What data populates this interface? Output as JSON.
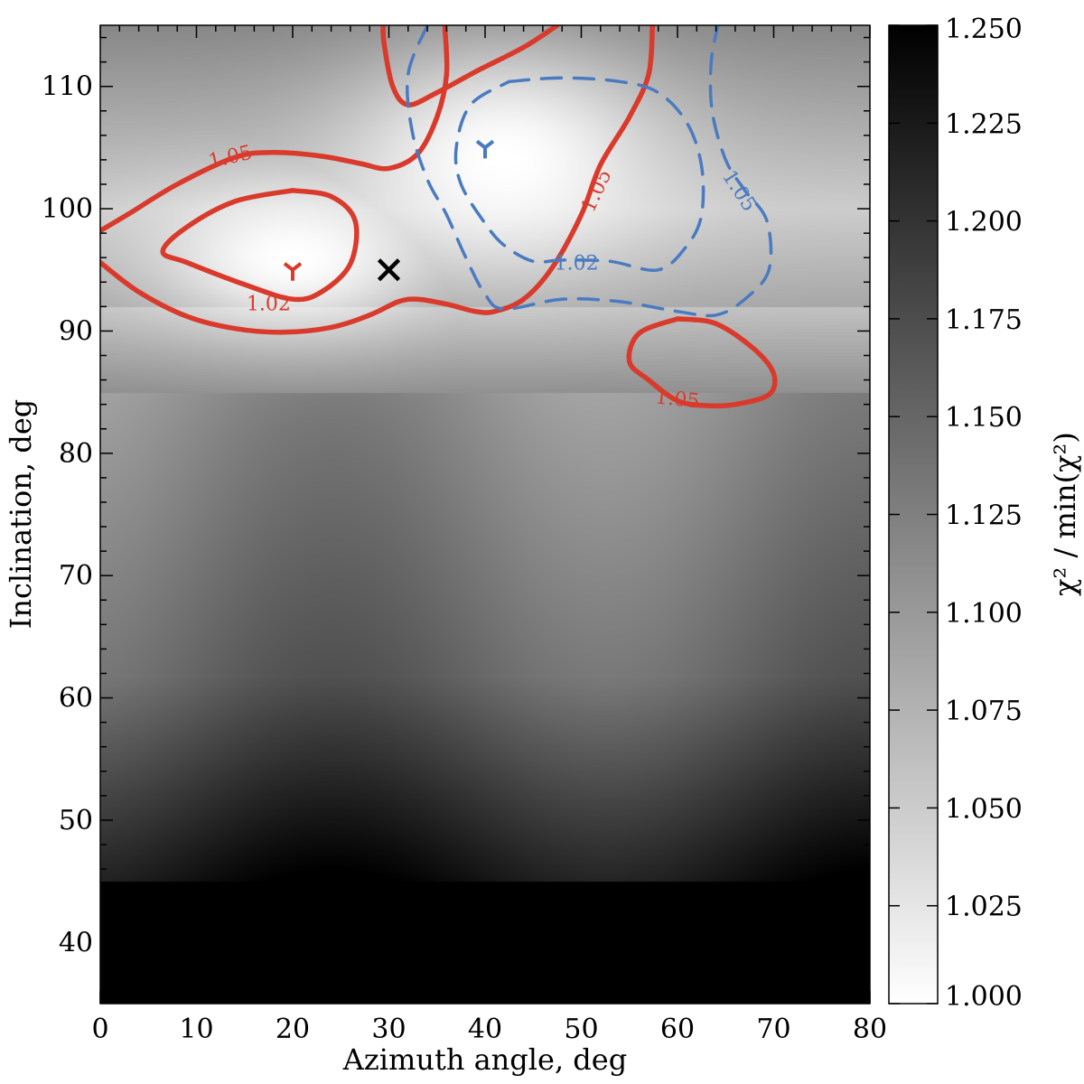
{
  "chart_data": {
    "type": "heatmap",
    "xlabel": "Azimuth angle, deg",
    "ylabel": "Inclination, deg",
    "xlim": [
      0,
      80
    ],
    "ylim": [
      35,
      115
    ],
    "x_ticks": [
      0,
      10,
      20,
      30,
      40,
      50,
      60,
      70,
      80
    ],
    "y_ticks": [
      40,
      50,
      60,
      70,
      80,
      90,
      100,
      110
    ],
    "x_tick_labels": [
      "0",
      "10",
      "20",
      "30",
      "40",
      "50",
      "60",
      "70",
      "80"
    ],
    "y_tick_labels": [
      "40",
      "50",
      "60",
      "70",
      "80",
      "90",
      "100",
      "110"
    ],
    "colorbar": {
      "label": "χ² / min(χ²)",
      "range": [
        1.0,
        1.25
      ],
      "colormap": "white-to-black",
      "ticks": [
        1.0,
        1.025,
        1.05,
        1.075,
        1.1,
        1.125,
        1.15,
        1.175,
        1.2,
        1.225,
        1.25
      ],
      "tick_labels": [
        "1.000",
        "1.025",
        "1.050",
        "1.075",
        "1.100",
        "1.125",
        "1.150",
        "1.175",
        "1.200",
        "1.225",
        "1.250"
      ]
    },
    "heatmap_minima": [
      {
        "x": 20,
        "y": 96,
        "value": 1.0,
        "sx": 14,
        "sy": 6
      },
      {
        "x": 42,
        "y": 104,
        "value": 1.0,
        "sx": 16,
        "sy": 9
      }
    ],
    "contours": [
      {
        "color": "#d93a2b",
        "style": "solid",
        "levels": [
          "1.02",
          "1.05"
        ],
        "label_positions": [
          {
            "text": "1.05",
            "x": 13.5,
            "y": 104.3,
            "angle": -13
          },
          {
            "text": "1.02",
            "x": 17.5,
            "y": 92.3,
            "angle": 0
          },
          {
            "text": "1.05",
            "x": 51.5,
            "y": 101.5,
            "angle": -65
          },
          {
            "text": "1.05",
            "x": 60,
            "y": 84.5,
            "angle": 6
          }
        ],
        "paths": [
          [
            [
              0,
              98.2
            ],
            [
              3,
              99.6
            ],
            [
              8,
              102
            ],
            [
              14,
              104.2
            ],
            [
              18,
              104.6
            ],
            [
              23,
              104.3
            ],
            [
              27,
              103.7
            ],
            [
              30,
              103.3
            ],
            [
              33,
              104.5
            ],
            [
              35,
              107.5
            ],
            [
              36,
              111
            ],
            [
              35.8,
              115
            ]
          ],
          [
            [
              0,
              95.6
            ],
            [
              4,
              93.2
            ],
            [
              9,
              91.2
            ],
            [
              14,
              90.2
            ],
            [
              19,
              89.9
            ],
            [
              24,
              90.3
            ],
            [
              28,
              91.3
            ],
            [
              31,
              92.4
            ],
            [
              33,
              92.6
            ],
            [
              36,
              92.2
            ],
            [
              39,
              91.6
            ],
            [
              41,
              91.6
            ],
            [
              44,
              92.6
            ],
            [
              47,
              95.2
            ],
            [
              50,
              99.5
            ],
            [
              52,
              103.6
            ],
            [
              55,
              107.5
            ],
            [
              57,
              111
            ],
            [
              57.4,
              115
            ]
          ],
          [
            [
              20,
              101.5
            ],
            [
              24,
              101
            ],
            [
              26.5,
              99
            ],
            [
              26,
              95.5
            ],
            [
              23,
              93.2
            ],
            [
              20,
              92.6
            ],
            [
              15,
              93.8
            ],
            [
              9,
              95.6
            ],
            [
              6.5,
              96.5
            ],
            [
              9,
              98.5
            ],
            [
              14,
              100.6
            ],
            [
              20,
              101.5
            ]
          ],
          [
            [
              60,
              91
            ],
            [
              64,
              90.6
            ],
            [
              68,
              88.5
            ],
            [
              70,
              86.5
            ],
            [
              69.5,
              84.8
            ],
            [
              66,
              84
            ],
            [
              63,
              83.9
            ],
            [
              60,
              84.3
            ],
            [
              57,
              86
            ],
            [
              55,
              87.5
            ],
            [
              56,
              89.8
            ],
            [
              60,
              91
            ]
          ],
          [
            [
              47.5,
              115
            ],
            [
              44,
              113.2
            ],
            [
              39,
              111.2
            ],
            [
              35,
              109.5
            ],
            [
              32,
              108.5
            ],
            [
              30.4,
              110
            ],
            [
              29.5,
              113.5
            ],
            [
              29.4,
              115
            ]
          ]
        ]
      },
      {
        "color": "#4a7bc0",
        "style": "dashed",
        "levels": [
          "1.02",
          "1.05"
        ],
        "label_positions": [
          {
            "text": "1.02",
            "x": 49.5,
            "y": 95.6,
            "angle": 0
          },
          {
            "text": "1.05",
            "x": 66.5,
            "y": 101.5,
            "angle": 57
          }
        ],
        "paths": [
          [
            [
              34,
              115
            ],
            [
              32,
              111
            ],
            [
              32.4,
              106.4
            ],
            [
              34,
              102.4
            ],
            [
              36,
              99.5
            ],
            [
              38,
              96
            ],
            [
              40,
              93
            ],
            [
              42,
              91.8
            ],
            [
              48,
              92.6
            ],
            [
              54,
              92.4
            ],
            [
              60,
              91.6
            ],
            [
              64,
              91.3
            ],
            [
              67,
              92.6
            ],
            [
              69.5,
              95
            ],
            [
              69.3,
              99
            ],
            [
              67,
              101.5
            ],
            [
              65,
              104
            ],
            [
              63.6,
              108
            ],
            [
              63.5,
              112
            ],
            [
              64.2,
              115
            ]
          ],
          [
            [
              42.5,
              110.4
            ],
            [
              48,
              110.7
            ],
            [
              54,
              110.4
            ],
            [
              58,
              109.5
            ],
            [
              61,
              107
            ],
            [
              62.5,
              103.5
            ],
            [
              62.5,
              99.5
            ],
            [
              61,
              97
            ],
            [
              58,
              95
            ],
            [
              53,
              95.7
            ],
            [
              48,
              95.8
            ],
            [
              45,
              95.7
            ],
            [
              42,
              97
            ],
            [
              40,
              98.8
            ],
            [
              37.5,
              102
            ],
            [
              37,
              105
            ],
            [
              38.5,
              108.5
            ],
            [
              42.5,
              110.4
            ]
          ]
        ]
      }
    ],
    "markers": [
      {
        "type": "tri-down",
        "x": 20,
        "y": 95,
        "color": "#d93a2b"
      },
      {
        "type": "tri-down",
        "x": 40,
        "y": 105,
        "color": "#4a7bc0"
      },
      {
        "type": "x",
        "x": 30,
        "y": 95,
        "color": "#000000"
      }
    ]
  }
}
